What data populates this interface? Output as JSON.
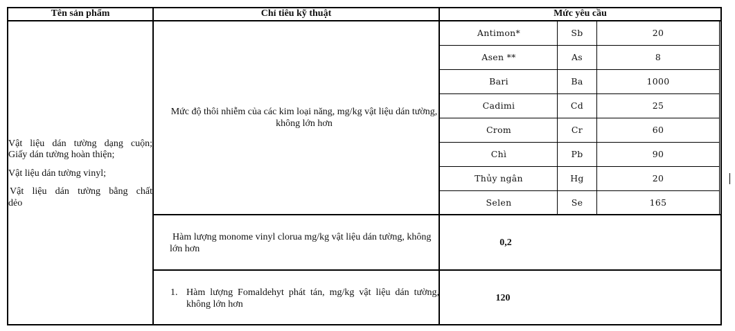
{
  "headers": {
    "product": "Tên sản phẩm",
    "spec": "Chỉ tiêu kỹ thuật",
    "requirement": "Mức yêu cầu"
  },
  "products": [
    "Vật liệu dán tường dạng cuộn;",
    "Giấy dán tường hoàn thiện;",
    "Vật liệu dán tường vinyl;",
    "Vật liệu dán tường bằng chất",
    "dẻo"
  ],
  "spec_rows": [
    {
      "text": "Mức độ thôi nhiễm của các kim loại năng, mg/kg vật liệu dán tường, không lớn hơn"
    },
    {
      "text": "Hàm lượng monome vinyl clorua mg/kg vật liệu dán tường, không lớn hơn",
      "value": "0,2"
    },
    {
      "number": "1.",
      "text": "Hàm lượng Fomaldehyt phát tán, mg/kg vật liệu dán tường, không lớn hơn",
      "value": "120"
    }
  ],
  "metals": [
    {
      "name": "Antimon*",
      "symbol": "Sb",
      "limit": "20"
    },
    {
      "name": "Asen **",
      "symbol": "As",
      "limit": "8"
    },
    {
      "name": "Bari",
      "symbol": "Ba",
      "limit": "1000"
    },
    {
      "name": "Cadimi",
      "symbol": "Cd",
      "limit": "25"
    },
    {
      "name": "Crom",
      "symbol": "Cr",
      "limit": "60"
    },
    {
      "name": "Chì",
      "symbol": "Pb",
      "limit": "90"
    },
    {
      "name": "Thủy ngân",
      "symbol": "Hg",
      "limit": "20"
    },
    {
      "name": "Selen",
      "symbol": "Se",
      "limit": "165"
    }
  ]
}
